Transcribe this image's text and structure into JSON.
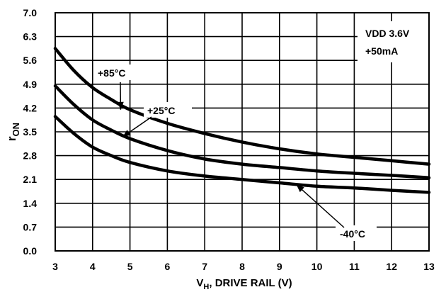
{
  "chart_data": {
    "type": "line",
    "title": "",
    "xlabel": "V_H, DRIVE RAIL (V)",
    "xlabel_main": "V",
    "xlabel_sub": "H",
    "xlabel_rest": ", DRIVE RAIL (V)",
    "ylabel": "r_ON",
    "ylabel_main": "r",
    "ylabel_sub": "ON",
    "xlim": [
      3,
      13
    ],
    "ylim": [
      0,
      7
    ],
    "xticks": [
      3,
      4,
      5,
      6,
      7,
      8,
      9,
      10,
      11,
      12,
      13
    ],
    "xtick_labels": [
      "3",
      "4",
      "5",
      "6",
      "7",
      "8",
      "9",
      "10",
      "11",
      "12",
      "13"
    ],
    "yticks": [
      0,
      0.7,
      1.4,
      2.1,
      2.8,
      3.5,
      4.2,
      4.9,
      5.6,
      6.3,
      7.0
    ],
    "ytick_labels": [
      "0.0",
      "0.7",
      "1.4",
      "2.1",
      "2.8",
      "3.5",
      "4.2",
      "4.9",
      "5.6",
      "6.3",
      "7.0"
    ],
    "grid": true,
    "conditions": [
      "VDD 3.6V",
      "+50mA"
    ],
    "series": [
      {
        "name": "+85°C",
        "x": [
          3,
          3.5,
          4,
          4.5,
          5,
          6,
          7,
          8,
          9,
          10,
          11,
          12,
          13
        ],
        "y": [
          5.95,
          5.3,
          4.8,
          4.45,
          4.15,
          3.75,
          3.45,
          3.2,
          3.0,
          2.85,
          2.75,
          2.65,
          2.55
        ]
      },
      {
        "name": "+25°C",
        "x": [
          3,
          3.5,
          4,
          4.5,
          5,
          6,
          7,
          8,
          9,
          10,
          11,
          12,
          13
        ],
        "y": [
          4.85,
          4.3,
          3.85,
          3.55,
          3.3,
          2.95,
          2.7,
          2.55,
          2.45,
          2.35,
          2.28,
          2.22,
          2.15
        ]
      },
      {
        "name": "-40°C",
        "x": [
          3,
          3.5,
          4,
          4.5,
          5,
          6,
          7,
          8,
          9,
          10,
          11,
          12,
          13
        ],
        "y": [
          3.95,
          3.45,
          3.05,
          2.8,
          2.6,
          2.35,
          2.2,
          2.1,
          2.0,
          1.9,
          1.85,
          1.78,
          1.72
        ]
      }
    ],
    "annotations": [
      {
        "text": "+85°C",
        "series": "+85°C",
        "point_x": 4.75,
        "point_y": 4.15
      },
      {
        "text": "+25°C",
        "series": "+25°C",
        "point_x": 4.8,
        "point_y": 3.35
      },
      {
        "text": "-40°C",
        "series": "-40°C",
        "point_x": 9.45,
        "point_y": 1.95
      }
    ]
  }
}
